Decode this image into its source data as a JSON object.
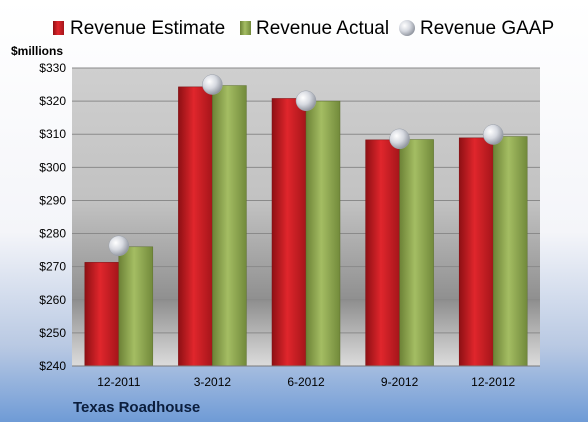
{
  "chart_data": {
    "type": "bar",
    "company": "Texas Roadhouse",
    "ylabel": "$millions",
    "ylim": [
      240,
      330
    ],
    "yticks": [
      240,
      250,
      260,
      270,
      280,
      290,
      300,
      310,
      320,
      330
    ],
    "ytick_labels": [
      "$240",
      "$250",
      "$260",
      "$270",
      "$280",
      "$290",
      "$300",
      "$310",
      "$320",
      "$330"
    ],
    "grid": true,
    "legend_position": "top",
    "categories": [
      "12-2011",
      "3-2012",
      "6-2012",
      "9-2012",
      "12-2012"
    ],
    "series": [
      {
        "name": "Revenue Estimate",
        "kind": "bar",
        "color": "#cc1f24",
        "values": [
          271.3,
          324.3,
          320.8,
          308.3,
          308.9
        ]
      },
      {
        "name": "Revenue Actual",
        "kind": "bar",
        "color": "#8ea54f",
        "values": [
          276.0,
          324.7,
          320.0,
          308.4,
          309.3
        ]
      },
      {
        "name": "Revenue GAAP",
        "kind": "marker",
        "color": "#c9cdd6",
        "values": [
          276.3,
          325.0,
          320.1,
          308.6,
          309.9
        ]
      }
    ]
  }
}
